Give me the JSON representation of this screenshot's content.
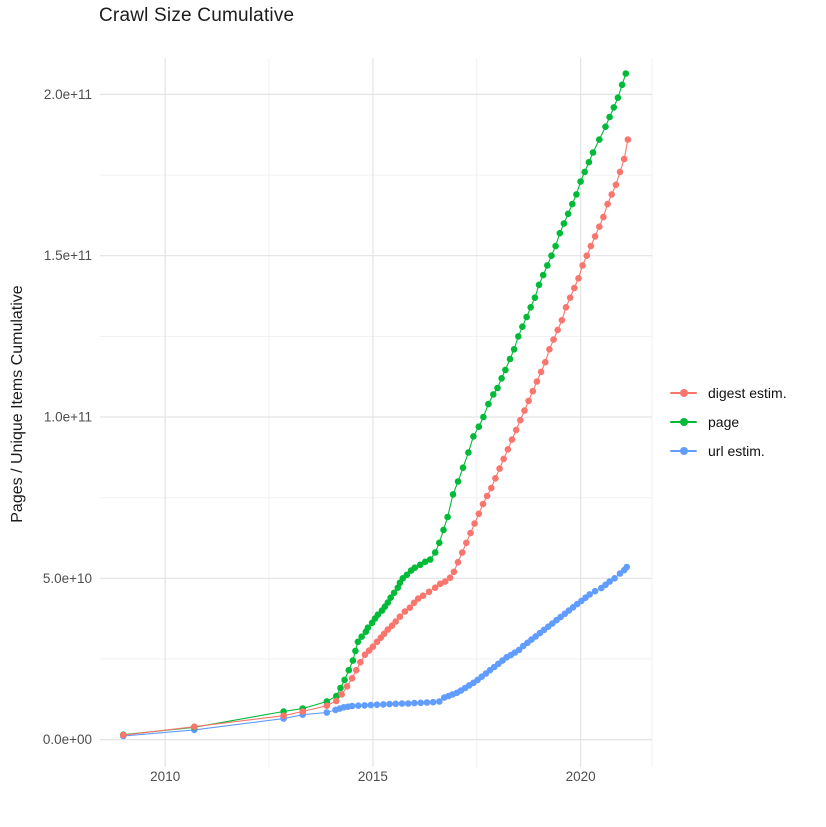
{
  "chart_data": {
    "type": "scatter",
    "title": "Crawl Size Cumulative",
    "xlabel": "",
    "ylabel": "Pages / Unique Items Cumulative",
    "legend_position": "right",
    "grid": "major+minor",
    "background": "#FFFFFF",
    "grid_color_major": "#E3E3E3",
    "grid_color_minor": "#F1F1F1",
    "tick_text_color": "#4D4D4D",
    "xlim": [
      2008.43,
      2021.72
    ],
    "ylim": [
      -8500000000.0,
      211300000000.0
    ],
    "x_ticks": [
      {
        "v": 2010,
        "label": "2010"
      },
      {
        "v": 2015,
        "label": "2015"
      },
      {
        "v": 2020,
        "label": "2020"
      }
    ],
    "x_minor_ticks": [
      2012.5,
      2017.5,
      2021.72
    ],
    "y_ticks": [
      {
        "v": 0,
        "label": "0.0e+00"
      },
      {
        "v": 50000000000.0,
        "label": "5.0e+10"
      },
      {
        "v": 100000000000.0,
        "label": "1.0e+11"
      },
      {
        "v": 150000000000.0,
        "label": "1.5e+11"
      },
      {
        "v": 200000000000.0,
        "label": "2.0e+11"
      }
    ],
    "y_minor_ticks": [
      25000000000.0,
      75000000000.0,
      125000000000.0,
      175000000000.0
    ],
    "series": [
      {
        "name": "digest estim.",
        "color": "#F8766D",
        "points": [
          [
            2008.99,
            1400000000.0
          ],
          [
            2010.7,
            4000000000.0
          ],
          [
            2012.85,
            7400000000.0
          ],
          [
            2013.31,
            8700000000.0
          ],
          [
            2013.89,
            10500000000.0
          ],
          [
            2014.12,
            12000000000.0
          ],
          [
            2014.25,
            14000000000.0
          ],
          [
            2014.38,
            16500000000.0
          ],
          [
            2014.5,
            19000000000.0
          ],
          [
            2014.6,
            21500000000.0
          ],
          [
            2014.7,
            24000000000.0
          ],
          [
            2014.81,
            26300000000.0
          ],
          [
            2014.91,
            27600000000.0
          ],
          [
            2015.0,
            28800000000.0
          ],
          [
            2015.1,
            30300000000.0
          ],
          [
            2015.19,
            31600000000.0
          ],
          [
            2015.27,
            32800000000.0
          ],
          [
            2015.36,
            34100000000.0
          ],
          [
            2015.46,
            35300000000.0
          ],
          [
            2015.55,
            36600000000.0
          ],
          [
            2015.65,
            38100000000.0
          ],
          [
            2015.77,
            39700000000.0
          ],
          [
            2015.89,
            40900000000.0
          ],
          [
            2015.99,
            42400000000.0
          ],
          [
            2016.09,
            43700000000.0
          ],
          [
            2016.21,
            44600000000.0
          ],
          [
            2016.35,
            45800000000.0
          ],
          [
            2016.5,
            47100000000.0
          ],
          [
            2016.62,
            48300000000.0
          ],
          [
            2016.74,
            49000000000.0
          ],
          [
            2016.86,
            50200000000.0
          ],
          [
            2016.95,
            52000000000.0
          ],
          [
            2017.05,
            55000000000.0
          ],
          [
            2017.15,
            58000000000.0
          ],
          [
            2017.25,
            61000000000.0
          ],
          [
            2017.35,
            64000000000.0
          ],
          [
            2017.45,
            67000000000.0
          ],
          [
            2017.55,
            70000000000.0
          ],
          [
            2017.65,
            73000000000.0
          ],
          [
            2017.75,
            75500000000.0
          ],
          [
            2017.85,
            78000000000.0
          ],
          [
            2017.95,
            81000000000.0
          ],
          [
            2018.05,
            84000000000.0
          ],
          [
            2018.15,
            87000000000.0
          ],
          [
            2018.25,
            90000000000.0
          ],
          [
            2018.35,
            93000000000.0
          ],
          [
            2018.45,
            96000000000.0
          ],
          [
            2018.55,
            99000000000.0
          ],
          [
            2018.65,
            102000000000.0
          ],
          [
            2018.75,
            105000000000.0
          ],
          [
            2018.85,
            108000000000.0
          ],
          [
            2018.95,
            111000000000.0
          ],
          [
            2019.05,
            114000000000.0
          ],
          [
            2019.15,
            117000000000.0
          ],
          [
            2019.25,
            121000000000.0
          ],
          [
            2019.35,
            124000000000.0
          ],
          [
            2019.45,
            127000000000.0
          ],
          [
            2019.55,
            130000000000.0
          ],
          [
            2019.65,
            134000000000.0
          ],
          [
            2019.75,
            137000000000.0
          ],
          [
            2019.85,
            140000000000.0
          ],
          [
            2019.95,
            143000000000.0
          ],
          [
            2020.05,
            147000000000.0
          ],
          [
            2020.15,
            150000000000.0
          ],
          [
            2020.25,
            153000000000.0
          ],
          [
            2020.35,
            156000000000.0
          ],
          [
            2020.45,
            159000000000.0
          ],
          [
            2020.55,
            162000000000.0
          ],
          [
            2020.65,
            166000000000.0
          ],
          [
            2020.75,
            169000000000.0
          ],
          [
            2020.85,
            172000000000.0
          ],
          [
            2020.95,
            176000000000.0
          ],
          [
            2021.05,
            180000000000.0
          ],
          [
            2021.14,
            186000000000.0
          ]
        ]
      },
      {
        "name": "page",
        "color": "#00BA38",
        "points": [
          [
            2008.99,
            1500000000.0
          ],
          [
            2010.7,
            3800000000.0
          ],
          [
            2012.85,
            8700000000.0
          ],
          [
            2013.31,
            9600000000.0
          ],
          [
            2013.89,
            11800000000.0
          ],
          [
            2014.12,
            13500000000.0
          ],
          [
            2014.22,
            16000000000.0
          ],
          [
            2014.32,
            18500000000.0
          ],
          [
            2014.42,
            21500000000.0
          ],
          [
            2014.52,
            24500000000.0
          ],
          [
            2014.58,
            27500000000.0
          ],
          [
            2014.64,
            30300000000.0
          ],
          [
            2014.73,
            31900000000.0
          ],
          [
            2014.83,
            33400000000.0
          ],
          [
            2014.88,
            34700000000.0
          ],
          [
            2014.98,
            36200000000.0
          ],
          [
            2015.05,
            37500000000.0
          ],
          [
            2015.12,
            38700000000.0
          ],
          [
            2015.22,
            40000000000.0
          ],
          [
            2015.29,
            41200000000.0
          ],
          [
            2015.36,
            42500000000.0
          ],
          [
            2015.43,
            44000000000.0
          ],
          [
            2015.51,
            45500000000.0
          ],
          [
            2015.6,
            47100000000.0
          ],
          [
            2015.65,
            48600000000.0
          ],
          [
            2015.72,
            50000000000.0
          ],
          [
            2015.82,
            51100000000.0
          ],
          [
            2015.92,
            52400000000.0
          ],
          [
            2016.01,
            53300000000.0
          ],
          [
            2016.14,
            54200000000.0
          ],
          [
            2016.26,
            55100000000.0
          ],
          [
            2016.38,
            55800000000.0
          ],
          [
            2016.5,
            58000000000.0
          ],
          [
            2016.6,
            61000000000.0
          ],
          [
            2016.7,
            65000000000.0
          ],
          [
            2016.8,
            69000000000.0
          ],
          [
            2016.93,
            76000000000.0
          ],
          [
            2017.05,
            80000000000.0
          ],
          [
            2017.17,
            84300000000.0
          ],
          [
            2017.3,
            89000000000.0
          ],
          [
            2017.42,
            94000000000.0
          ],
          [
            2017.55,
            97000000000.0
          ],
          [
            2017.66,
            100000000000.0
          ],
          [
            2017.78,
            104000000000.0
          ],
          [
            2017.9,
            107000000000.0
          ],
          [
            2018.0,
            109000000000.0
          ],
          [
            2018.1,
            112000000000.0
          ],
          [
            2018.19,
            114600000000.0
          ],
          [
            2018.3,
            118000000000.0
          ],
          [
            2018.4,
            121000000000.0
          ],
          [
            2018.5,
            125000000000.0
          ],
          [
            2018.6,
            128000000000.0
          ],
          [
            2018.7,
            131000000000.0
          ],
          [
            2018.8,
            134000000000.0
          ],
          [
            2018.9,
            137000000000.0
          ],
          [
            2019.0,
            141000000000.0
          ],
          [
            2019.1,
            144000000000.0
          ],
          [
            2019.2,
            147000000000.0
          ],
          [
            2019.3,
            150000000000.0
          ],
          [
            2019.4,
            153000000000.0
          ],
          [
            2019.5,
            157000000000.0
          ],
          [
            2019.6,
            160000000000.0
          ],
          [
            2019.7,
            163000000000.0
          ],
          [
            2019.8,
            166000000000.0
          ],
          [
            2019.9,
            169000000000.0
          ],
          [
            2020.0,
            173000000000.0
          ],
          [
            2020.1,
            176000000000.0
          ],
          [
            2020.2,
            179000000000.0
          ],
          [
            2020.3,
            182000000000.0
          ],
          [
            2020.45,
            186000000000.0
          ],
          [
            2020.6,
            190000000000.0
          ],
          [
            2020.7,
            193000000000.0
          ],
          [
            2020.8,
            196000000000.0
          ],
          [
            2020.9,
            199000000000.0
          ],
          [
            2021.0,
            203000000000.0
          ],
          [
            2021.09,
            206500000000.0
          ]
        ]
      },
      {
        "name": "url estim.",
        "color": "#619CFF",
        "points": [
          [
            2008.99,
            1100000000.0
          ],
          [
            2010.7,
            3000000000.0
          ],
          [
            2012.85,
            6500000000.0
          ],
          [
            2013.31,
            7700000000.0
          ],
          [
            2013.89,
            8400000000.0
          ],
          [
            2014.1,
            9200000000.0
          ],
          [
            2014.2,
            9600000000.0
          ],
          [
            2014.3,
            10000000000.0
          ],
          [
            2014.4,
            10200000000.0
          ],
          [
            2014.5,
            10400000000.0
          ],
          [
            2014.65,
            10500000000.0
          ],
          [
            2014.8,
            10600000000.0
          ],
          [
            2014.95,
            10700000000.0
          ],
          [
            2015.1,
            10800000000.0
          ],
          [
            2015.25,
            10900000000.0
          ],
          [
            2015.4,
            11000000000.0
          ],
          [
            2015.55,
            11100000000.0
          ],
          [
            2015.7,
            11150000000.0
          ],
          [
            2015.85,
            11200000000.0
          ],
          [
            2016.0,
            11300000000.0
          ],
          [
            2016.15,
            11400000000.0
          ],
          [
            2016.3,
            11500000000.0
          ],
          [
            2016.45,
            11600000000.0
          ],
          [
            2016.6,
            11800000000.0
          ],
          [
            2016.72,
            13000000000.0
          ],
          [
            2016.82,
            13500000000.0
          ],
          [
            2016.92,
            14000000000.0
          ],
          [
            2017.02,
            14500000000.0
          ],
          [
            2017.12,
            15200000000.0
          ],
          [
            2017.22,
            16000000000.0
          ],
          [
            2017.32,
            16800000000.0
          ],
          [
            2017.42,
            17600000000.0
          ],
          [
            2017.52,
            18500000000.0
          ],
          [
            2017.62,
            19500000000.0
          ],
          [
            2017.72,
            20500000000.0
          ],
          [
            2017.82,
            21500000000.0
          ],
          [
            2017.92,
            22500000000.0
          ],
          [
            2018.02,
            23500000000.0
          ],
          [
            2018.12,
            24500000000.0
          ],
          [
            2018.22,
            25500000000.0
          ],
          [
            2018.32,
            26200000000.0
          ],
          [
            2018.42,
            27000000000.0
          ],
          [
            2018.52,
            27800000000.0
          ],
          [
            2018.62,
            29000000000.0
          ],
          [
            2018.72,
            30000000000.0
          ],
          [
            2018.82,
            31000000000.0
          ],
          [
            2018.92,
            32000000000.0
          ],
          [
            2019.02,
            33000000000.0
          ],
          [
            2019.12,
            34000000000.0
          ],
          [
            2019.22,
            35000000000.0
          ],
          [
            2019.32,
            36000000000.0
          ],
          [
            2019.42,
            37000000000.0
          ],
          [
            2019.52,
            38000000000.0
          ],
          [
            2019.62,
            39000000000.0
          ],
          [
            2019.72,
            40000000000.0
          ],
          [
            2019.82,
            41000000000.0
          ],
          [
            2019.92,
            42000000000.0
          ],
          [
            2020.02,
            43000000000.0
          ],
          [
            2020.12,
            44000000000.0
          ],
          [
            2020.22,
            45000000000.0
          ],
          [
            2020.35,
            46000000000.0
          ],
          [
            2020.5,
            47000000000.0
          ],
          [
            2020.6,
            48000000000.0
          ],
          [
            2020.7,
            49000000000.0
          ],
          [
            2020.82,
            50000000000.0
          ],
          [
            2020.95,
            51500000000.0
          ],
          [
            2021.05,
            52500000000.0
          ],
          [
            2021.11,
            53500000000.0
          ]
        ]
      }
    ]
  }
}
